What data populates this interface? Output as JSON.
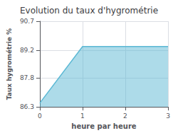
{
  "chart_data": {
    "type": "area",
    "title": "Evolution du taux d'hygrométrie",
    "xlabel": "heure par heure",
    "ylabel": "Taux hygrométrie %",
    "x": [
      0,
      1,
      2,
      3
    ],
    "values": [
      86.5,
      89.4,
      89.4,
      89.4
    ],
    "xlim": [
      0,
      3
    ],
    "ylim": [
      86.3,
      90.7
    ],
    "xticks": [
      0,
      1,
      2,
      3
    ],
    "yticks": [
      86.3,
      87.8,
      89.2,
      90.7
    ],
    "color": "#5bb8d4",
    "grid": true
  }
}
